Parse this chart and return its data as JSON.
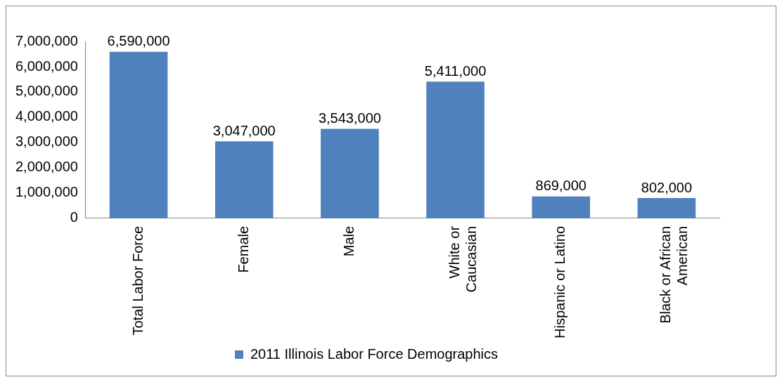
{
  "chart_data": {
    "type": "bar",
    "categories": [
      "Total Labor Force",
      "Female",
      "Male",
      "White or Caucasian",
      "Hispanic or Latino",
      "Black or African American"
    ],
    "series": [
      {
        "name": "2011 Illinois Labor Force Demographics",
        "color": "#4f81bd",
        "values": [
          6590000,
          3047000,
          3543000,
          5411000,
          869000,
          802000
        ],
        "value_labels": [
          "6,590,000",
          "3,047,000",
          "3,543,000",
          "5,411,000",
          "869,000",
          "802,000"
        ]
      }
    ],
    "ylim": [
      0,
      7000000
    ],
    "yticks": [
      0,
      {
        "value": 1000000,
        "label": "1,000,000"
      },
      {
        "value": 2000000,
        "label": "2,000,000"
      },
      {
        "value": 3000000,
        "label": "3,000,000"
      },
      {
        "value": 4000000,
        "label": "4,000,000"
      },
      {
        "value": 5000000,
        "label": "5,000,000"
      },
      {
        "value": 6000000,
        "label": "6,000,000"
      },
      {
        "value": 7000000,
        "label": "7,000,000"
      }
    ],
    "grid": false,
    "legend": "bottom"
  }
}
